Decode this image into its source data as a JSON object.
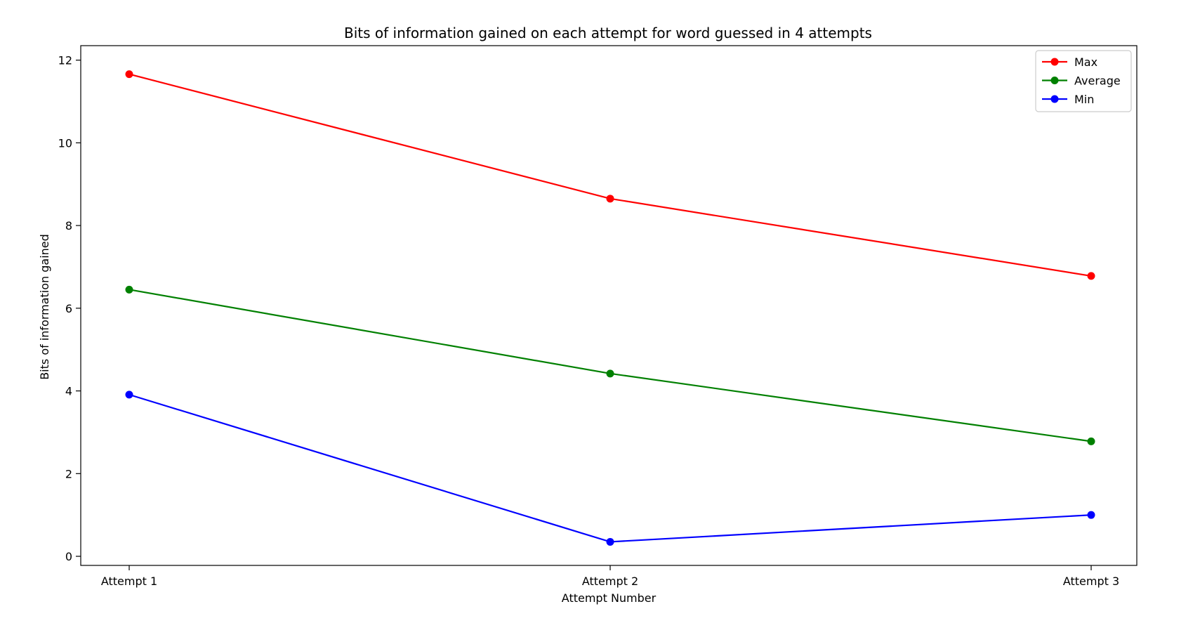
{
  "chart_data": {
    "type": "line",
    "title": "Bits of information gained on each attempt for word guessed in 4 attempts",
    "xlabel": "Attempt Number",
    "ylabel": "Bits of information gained",
    "categories": [
      "Attempt 1",
      "Attempt 2",
      "Attempt 3"
    ],
    "ylim": [
      -0.22,
      12.35
    ],
    "yticks": [
      0,
      2,
      4,
      6,
      8,
      10,
      12
    ],
    "grid": false,
    "legend_position": "top-right",
    "series": [
      {
        "name": "Max",
        "color": "#ff0000",
        "values": [
          11.66,
          8.65,
          6.78
        ]
      },
      {
        "name": "Average",
        "color": "#008000",
        "values": [
          6.45,
          4.42,
          2.78
        ]
      },
      {
        "name": "Min",
        "color": "#0000ff",
        "values": [
          3.91,
          0.35,
          1.0
        ]
      }
    ]
  }
}
